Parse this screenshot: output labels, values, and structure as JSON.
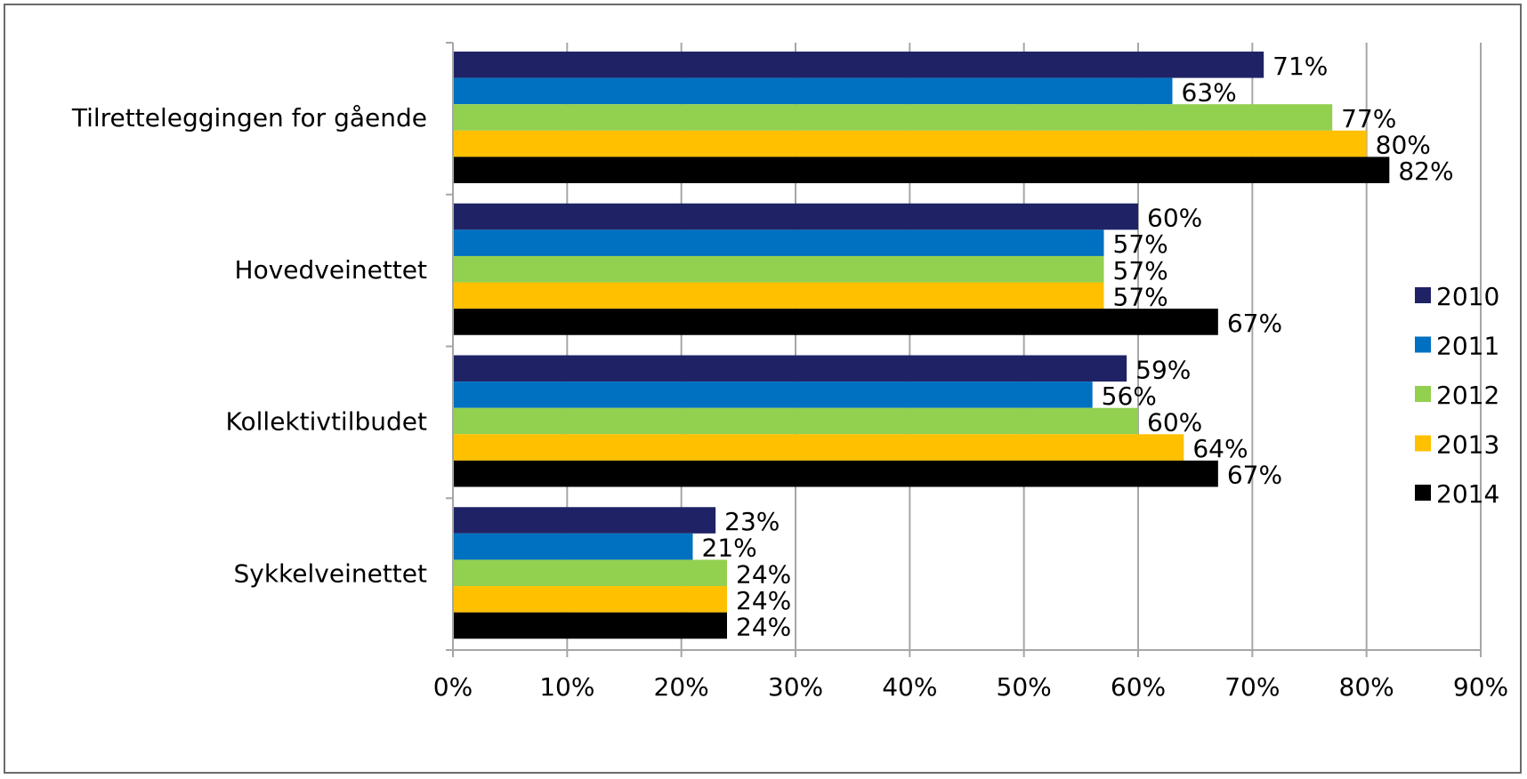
{
  "chart_data": {
    "type": "bar",
    "orientation": "horizontal",
    "categories": [
      "Tilretteleggingen for gående",
      "Hovedveinettet",
      "Kollektivtilbudet",
      "Sykkelveinettet"
    ],
    "series": [
      {
        "name": "2010",
        "color": "#1f2366",
        "values": [
          71,
          60,
          59,
          23
        ],
        "labels": [
          "71%",
          "60%",
          "59%",
          "23%"
        ]
      },
      {
        "name": "2011",
        "color": "#0070c0",
        "values": [
          63,
          57,
          56,
          21
        ],
        "labels": [
          "63%",
          "57%",
          "56%",
          "21%"
        ]
      },
      {
        "name": "2012",
        "color": "#92d050",
        "values": [
          77,
          57,
          60,
          24
        ],
        "labels": [
          "77%",
          "57%",
          "60%",
          "24%"
        ]
      },
      {
        "name": "2013",
        "color": "#ffc000",
        "values": [
          80,
          57,
          64,
          24
        ],
        "labels": [
          "80%",
          "57%",
          "64%",
          "24%"
        ]
      },
      {
        "name": "2014",
        "color": "#000000",
        "values": [
          82,
          67,
          67,
          24
        ],
        "labels": [
          "82%",
          "67%",
          "67%",
          "24%"
        ]
      }
    ],
    "xlim": [
      0,
      90
    ],
    "xticks": [
      0,
      10,
      20,
      30,
      40,
      50,
      60,
      70,
      80,
      90
    ],
    "xtick_labels": [
      "0%",
      "10%",
      "20%",
      "30%",
      "40%",
      "50%",
      "60%",
      "70%",
      "80%",
      "90%"
    ],
    "grid": "vertical",
    "legend_position": "right",
    "title": "",
    "xlabel": "",
    "ylabel": ""
  }
}
